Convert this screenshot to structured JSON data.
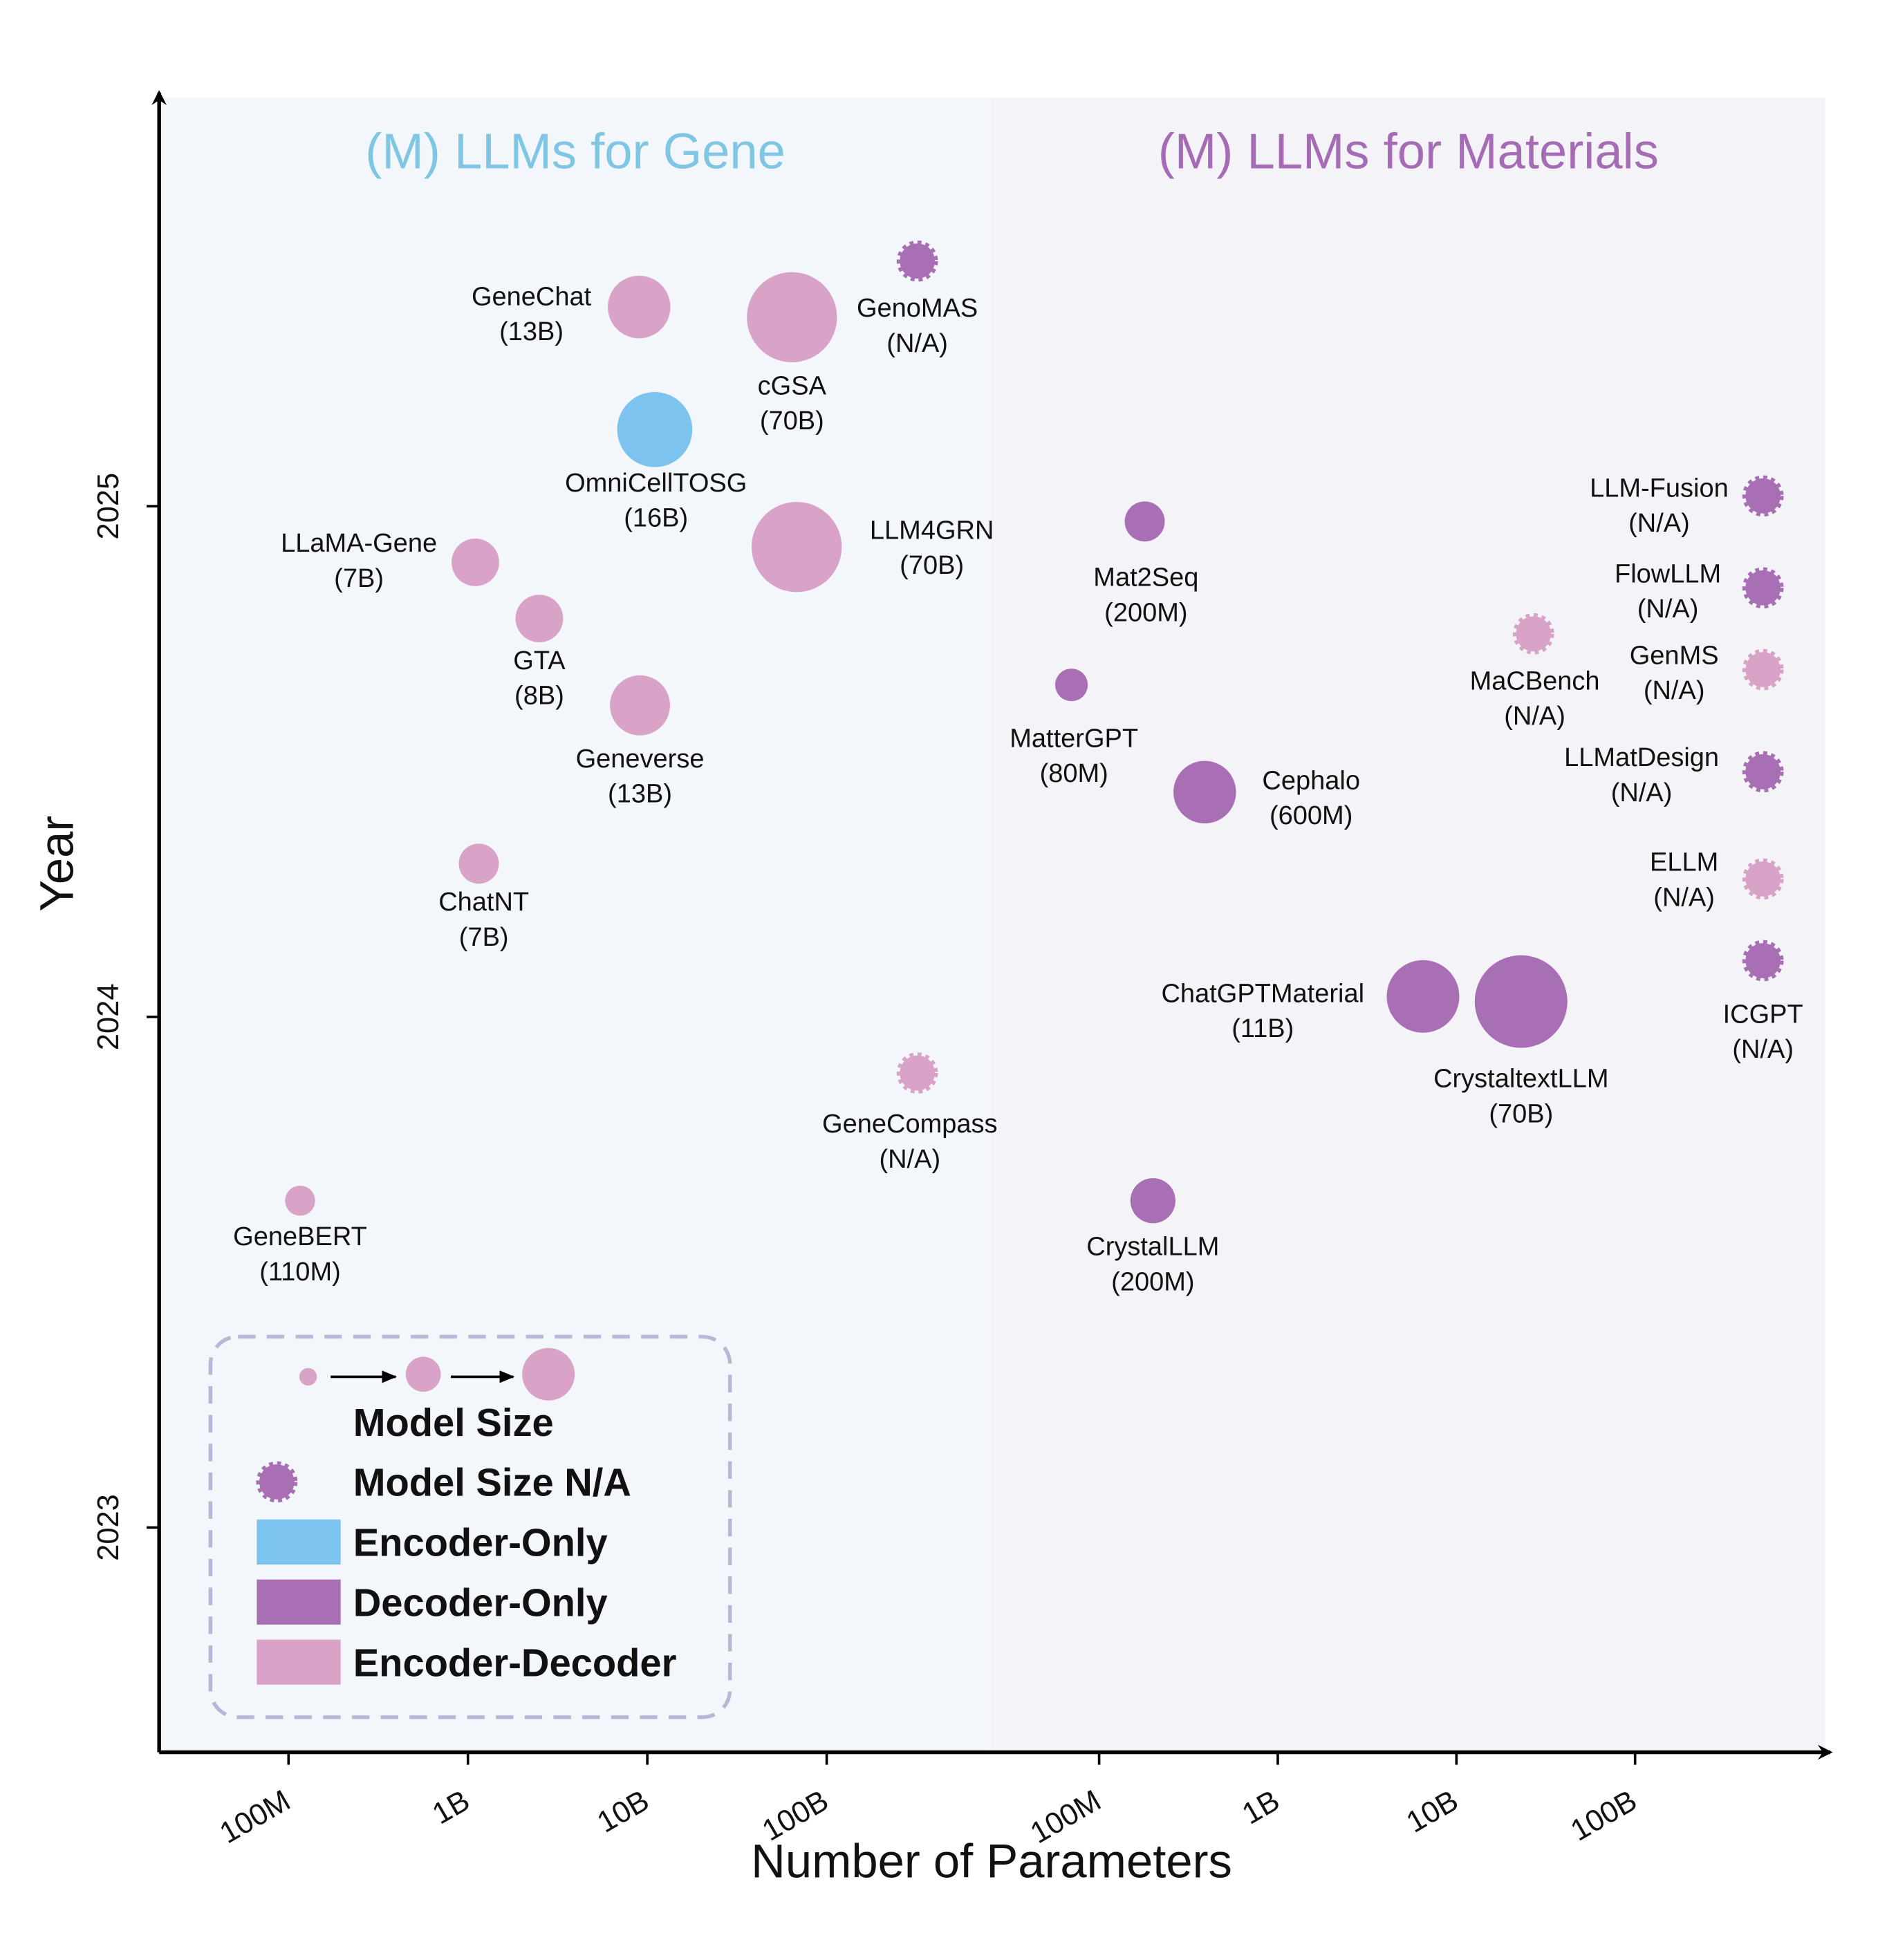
{
  "chart_data": {
    "type": "bubble",
    "x_label": "Number of Parameters",
    "y_label": "Year",
    "ylim": [
      2022.56,
      2025.8
    ],
    "yticks": [
      2023,
      2024,
      2025
    ],
    "log_x": true,
    "series": [
      {
        "name": "Encoder-Only",
        "color": "#7dc3ef"
      },
      {
        "name": "Decoder-Only",
        "color": "#a86fb4"
      },
      {
        "name": "Encoder-Decoder",
        "color": "#d9a3c7"
      }
    ],
    "legend": {
      "size_title": "Model Size",
      "size_na": "Model Size N/A"
    },
    "panels": [
      {
        "title": "(M) LLMs for Gene",
        "title_color": "#7ec6e4",
        "background": "#f3f6fa",
        "xlim": [
          19000000.0,
          830000000000.0
        ],
        "xticks": [
          {
            "value": 100000000.0,
            "label": "100M"
          },
          {
            "value": 1000000000.0,
            "label": "1B"
          },
          {
            "value": 10000000000.0,
            "label": "10B"
          },
          {
            "value": 100000000000.0,
            "label": "100B"
          }
        ],
        "names": [
          "GeneChat",
          "cGSA",
          "GenoMAS",
          "OmniCellTOSG",
          "LLM4GRN",
          "LLaMA-Gene",
          "GTA",
          "Geneverse",
          "ChatNT",
          "GeneCompass",
          "GeneBERT"
        ],
        "size_labels": [
          "(13B)",
          "(70B)",
          "(N/A)",
          "(16B)",
          "(70B)",
          "(7B)",
          "(8B)",
          "(13B)",
          "(7B)",
          "(N/A)",
          "(110M)"
        ],
        "x": [
          9000000000.0,
          64000000000.0,
          320000000000.0,
          11000000000.0,
          68000000000.0,
          1100000000.0,
          2500000000.0,
          9100000000.0,
          1150000000.0,
          320000000000.0,
          116000000.0
        ],
        "y": [
          2025.39,
          2025.37,
          2025.48,
          2025.15,
          2024.92,
          2024.89,
          2024.78,
          2024.61,
          2024.3,
          2023.89,
          2023.64
        ],
        "sizes": [
          25,
          36,
          null,
          30,
          36,
          19,
          19,
          24,
          16,
          null,
          12
        ],
        "series_index": [
          2,
          2,
          1,
          0,
          2,
          2,
          2,
          2,
          2,
          2,
          2
        ]
      },
      {
        "title": "(M) LLMs for Materials",
        "title_color": "#a56bb5",
        "background": "#f4f3f8",
        "xlim": [
          25000000.0,
          1160000000000.0
        ],
        "xticks": [
          {
            "value": 100000000.0,
            "label": "100M"
          },
          {
            "value": 1000000000.0,
            "label": "1B"
          },
          {
            "value": 10000000000.0,
            "label": "10B"
          },
          {
            "value": 100000000000.0,
            "label": "100B"
          }
        ],
        "names": [
          "Mat2Seq",
          "MatterGPT",
          "Cephalo",
          "CrystalLLM",
          "ChatGPTMaterial",
          "CrystaltextLLM",
          "MaCBench",
          "LLM-Fusion",
          "FlowLLM",
          "GenMS",
          "LLMatDesign",
          "ELLM",
          "ICGPT"
        ],
        "size_labels": [
          "(200M)",
          "(80M)",
          "(600M)",
          "(200M)",
          "(11B)",
          "(70B)",
          "(N/A)",
          "(N/A)",
          "(N/A)",
          "(N/A)",
          "(N/A)",
          "(N/A)",
          "(N/A)"
        ],
        "x": [
          180000000.0,
          70000000.0,
          390000000.0,
          200000000.0,
          6500000000.0,
          23000000000.0,
          27000000000.0,
          520000000000.0,
          520000000000.0,
          520000000000.0,
          520000000000.0,
          520000000000.0,
          520000000000.0
        ],
        "y": [
          2024.97,
          2024.65,
          2024.44,
          2023.64,
          2024.04,
          2024.03,
          2024.75,
          2025.02,
          2024.84,
          2024.68,
          2024.48,
          2024.27,
          2024.11
        ],
        "sizes": [
          16,
          13,
          25,
          18,
          29,
          37,
          null,
          null,
          null,
          null,
          null,
          null,
          null
        ],
        "series_index": [
          1,
          1,
          1,
          1,
          1,
          1,
          2,
          1,
          1,
          2,
          1,
          2,
          1
        ]
      }
    ]
  }
}
